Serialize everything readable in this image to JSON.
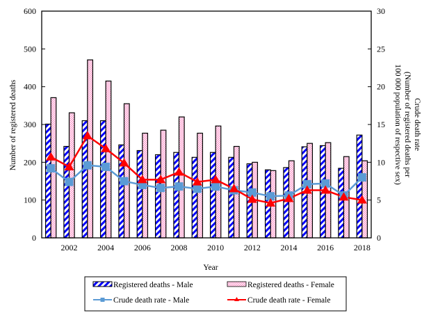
{
  "chart_data": {
    "type": "bar",
    "title": "",
    "xlabel": "Year",
    "ylabel": "Number of registered deaths",
    "y2label": [
      "Crude death rate",
      "(Number of registered deaths per",
      "100 000 population of respective sex)"
    ],
    "ylim": [
      0,
      600
    ],
    "y2lim": [
      0,
      30
    ],
    "yticks": [
      0,
      100,
      200,
      300,
      400,
      500,
      600
    ],
    "y2ticks": [
      0,
      5,
      10,
      15,
      20,
      25,
      30
    ],
    "categories": [
      2001,
      2002,
      2003,
      2004,
      2005,
      2006,
      2007,
      2008,
      2009,
      2010,
      2011,
      2012,
      2013,
      2014,
      2015,
      2016,
      2017,
      2018
    ],
    "xtick_labels": [
      "2002",
      "2004",
      "2006",
      "2008",
      "2010",
      "2012",
      "2014",
      "2016",
      "2018"
    ],
    "grid": false,
    "legend_position": "bottom",
    "series": [
      {
        "name": "Registered deaths - Male",
        "type": "bar",
        "axis": "left",
        "color": "#0000ff",
        "values": [
          301,
          242,
          310,
          310,
          246,
          231,
          220,
          226,
          213,
          226,
          213,
          196,
          180,
          186,
          241,
          244,
          184,
          272
        ]
      },
      {
        "name": "Registered deaths - Female",
        "type": "bar",
        "axis": "left",
        "color": "#ff99cc",
        "values": [
          371,
          331,
          471,
          415,
          355,
          277,
          285,
          320,
          277,
          296,
          242,
          200,
          178,
          204,
          250,
          252,
          215,
          204
        ]
      },
      {
        "name": "Crude death rate - Male",
        "type": "line",
        "axis": "right",
        "color": "#5b9bd5",
        "marker": "square",
        "values": [
          9.2,
          7.4,
          9.6,
          9.4,
          7.5,
          7.0,
          6.6,
          6.8,
          6.5,
          6.8,
          6.3,
          6.0,
          5.5,
          5.6,
          7.1,
          7.2,
          5.6,
          8.0
        ]
      },
      {
        "name": "Crude death rate - Female",
        "type": "line",
        "axis": "right",
        "color": "#ff0000",
        "marker": "triangle",
        "values": [
          10.7,
          9.4,
          13.5,
          11.8,
          9.9,
          7.7,
          7.7,
          8.7,
          7.4,
          7.7,
          6.5,
          5.1,
          4.6,
          5.2,
          6.3,
          6.3,
          5.4,
          5.0
        ]
      }
    ]
  }
}
